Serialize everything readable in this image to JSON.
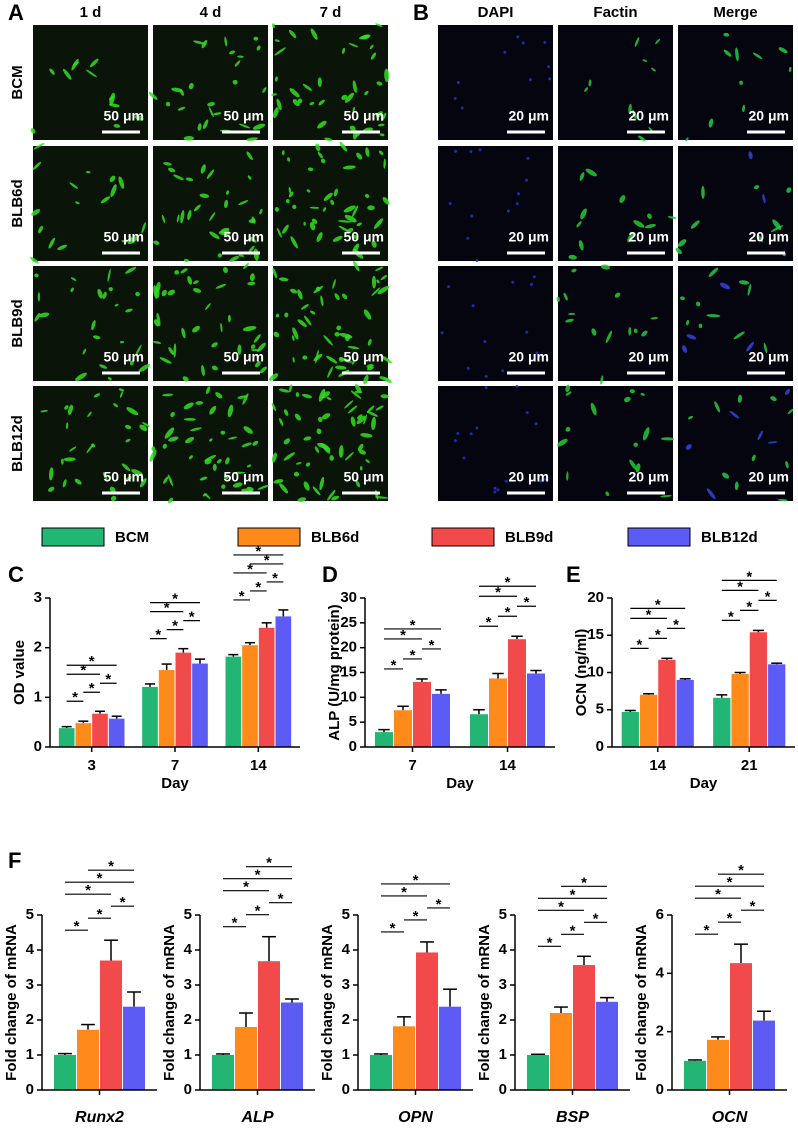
{
  "panels": {
    "A": {
      "label": "A",
      "columns": [
        "1 d",
        "4 d",
        "7 d"
      ],
      "rows": [
        "BCM",
        "BLB6d",
        "BLB9d",
        "BLB12d"
      ],
      "scale_bars": [
        [
          "50 μm",
          "50 μm",
          "50 μm"
        ],
        [
          "50 μm",
          "50 μm",
          "50 μm"
        ],
        [
          "50 μm",
          "50 μm",
          "50 μm"
        ],
        [
          "50 μm",
          "50 μm",
          "50 μm"
        ]
      ]
    },
    "B": {
      "label": "B",
      "columns": [
        "DAPI",
        "Factin",
        "Merge"
      ],
      "column_colors": [
        "#1010ff",
        "#10d010",
        "#000000"
      ],
      "scale_bars": [
        [
          "20 μm",
          "20 μm",
          "20 μm"
        ],
        [
          "20 μm",
          "20 μm",
          "20 μm"
        ],
        [
          "20 μm",
          "20 μm",
          "20 μm"
        ],
        [
          "20 μm",
          "20 μm",
          "20 μm"
        ]
      ]
    }
  },
  "legend": [
    {
      "name": "BCM",
      "color": "#22b573"
    },
    {
      "name": "BLB6d",
      "color": "#ff8a1c"
    },
    {
      "name": "BLB9d",
      "color": "#f24a4a"
    },
    {
      "name": "BLB12d",
      "color": "#5c5cf5"
    }
  ],
  "chart_data": [
    {
      "type": "bar",
      "panel": "C",
      "ylabel": "OD value",
      "xlabel": "Day",
      "categories": [
        "3",
        "7",
        "14"
      ],
      "ylim": [
        0,
        3
      ],
      "yticks": [
        0,
        1,
        2,
        3
      ],
      "series": [
        {
          "values": [
            0.38,
            1.21,
            1.82
          ],
          "errors": [
            0.03,
            0.06,
            0.04
          ]
        },
        {
          "values": [
            0.48,
            1.55,
            2.05
          ],
          "errors": [
            0.04,
            0.12,
            0.05
          ]
        },
        {
          "values": [
            0.67,
            1.9,
            2.4
          ],
          "errors": [
            0.05,
            0.08,
            0.1
          ]
        },
        {
          "values": [
            0.57,
            1.68,
            2.63
          ],
          "errors": [
            0.05,
            0.09,
            0.13
          ]
        }
      ],
      "comparisons": [
        [
          {
            "pair": [
              0,
              1
            ],
            "label": "*"
          },
          {
            "pair": [
              1,
              2
            ],
            "label": "*"
          },
          {
            "pair": [
              2,
              3
            ],
            "label": "*"
          },
          {
            "pair": [
              0,
              2
            ],
            "label": "*"
          },
          {
            "pair": [
              0,
              3
            ],
            "label": "*"
          }
        ],
        [
          {
            "pair": [
              0,
              1
            ],
            "label": "*"
          },
          {
            "pair": [
              1,
              2
            ],
            "label": "*"
          },
          {
            "pair": [
              2,
              3
            ],
            "label": "*"
          },
          {
            "pair": [
              0,
              2
            ],
            "label": "*"
          },
          {
            "pair": [
              0,
              3
            ],
            "label": "*"
          }
        ],
        [
          {
            "pair": [
              0,
              1
            ],
            "label": "*"
          },
          {
            "pair": [
              1,
              2
            ],
            "label": "*"
          },
          {
            "pair": [
              2,
              3
            ],
            "label": "*"
          },
          {
            "pair": [
              0,
              2
            ],
            "label": "*"
          },
          {
            "pair": [
              1,
              3
            ],
            "label": "*"
          },
          {
            "pair": [
              0,
              3
            ],
            "label": "*"
          }
        ]
      ]
    },
    {
      "type": "bar",
      "panel": "D",
      "ylabel": "ALP (U/mg protein)",
      "xlabel": "Day",
      "categories": [
        "7",
        "14"
      ],
      "ylim": [
        0,
        30
      ],
      "yticks": [
        0,
        5,
        10,
        15,
        20,
        25,
        30
      ],
      "series": [
        {
          "values": [
            3.0,
            6.6
          ],
          "errors": [
            0.5,
            0.9
          ]
        },
        {
          "values": [
            7.4,
            13.8
          ],
          "errors": [
            0.8,
            1.0
          ]
        },
        {
          "values": [
            13.1,
            21.7
          ],
          "errors": [
            0.6,
            0.6
          ]
        },
        {
          "values": [
            10.7,
            14.8
          ],
          "errors": [
            0.8,
            0.6
          ]
        }
      ],
      "comparisons": [
        [
          {
            "pair": [
              0,
              1
            ],
            "label": "*"
          },
          {
            "pair": [
              1,
              2
            ],
            "label": "*"
          },
          {
            "pair": [
              2,
              3
            ],
            "label": "*"
          },
          {
            "pair": [
              0,
              2
            ],
            "label": "*"
          },
          {
            "pair": [
              0,
              3
            ],
            "label": "*"
          }
        ],
        [
          {
            "pair": [
              0,
              1
            ],
            "label": "*"
          },
          {
            "pair": [
              1,
              2
            ],
            "label": "*"
          },
          {
            "pair": [
              2,
              3
            ],
            "label": "*"
          },
          {
            "pair": [
              0,
              2
            ],
            "label": "*"
          },
          {
            "pair": [
              0,
              3
            ],
            "label": "*"
          }
        ]
      ]
    },
    {
      "type": "bar",
      "panel": "E",
      "ylabel": "OCN (ng/ml)",
      "xlabel": "Day",
      "categories": [
        "14",
        "21"
      ],
      "ylim": [
        0,
        20
      ],
      "yticks": [
        0,
        5,
        10,
        15,
        20
      ],
      "series": [
        {
          "values": [
            4.7,
            6.6
          ],
          "errors": [
            0.2,
            0.4
          ]
        },
        {
          "values": [
            7.0,
            9.8
          ],
          "errors": [
            0.15,
            0.2
          ]
        },
        {
          "values": [
            11.7,
            15.4
          ],
          "errors": [
            0.2,
            0.25
          ]
        },
        {
          "values": [
            9.0,
            11.1
          ],
          "errors": [
            0.15,
            0.15
          ]
        }
      ],
      "comparisons": [
        [
          {
            "pair": [
              0,
              1
            ],
            "label": "*"
          },
          {
            "pair": [
              1,
              2
            ],
            "label": "*"
          },
          {
            "pair": [
              2,
              3
            ],
            "label": "*"
          },
          {
            "pair": [
              0,
              2
            ],
            "label": "*"
          },
          {
            "pair": [
              0,
              3
            ],
            "label": "*"
          }
        ],
        [
          {
            "pair": [
              0,
              1
            ],
            "label": "*"
          },
          {
            "pair": [
              1,
              2
            ],
            "label": "*"
          },
          {
            "pair": [
              2,
              3
            ],
            "label": "*"
          },
          {
            "pair": [
              0,
              2
            ],
            "label": "*"
          },
          {
            "pair": [
              0,
              3
            ],
            "label": "*"
          }
        ]
      ]
    },
    {
      "type": "bar",
      "panel": "F",
      "ylabel": "Fold change of mRNA",
      "categories": [
        "Runx2"
      ],
      "ylim": [
        0,
        5
      ],
      "yticks": [
        0,
        1,
        2,
        3,
        4,
        5
      ],
      "series": [
        {
          "values": [
            1.0
          ],
          "errors": [
            0.04
          ]
        },
        {
          "values": [
            1.72
          ],
          "errors": [
            0.15
          ]
        },
        {
          "values": [
            3.7
          ],
          "errors": [
            0.58
          ]
        },
        {
          "values": [
            2.38
          ],
          "errors": [
            0.42
          ]
        }
      ],
      "comparisons": [
        [
          {
            "pair": [
              0,
              1
            ],
            "label": "*"
          },
          {
            "pair": [
              1,
              2
            ],
            "label": "*"
          },
          {
            "pair": [
              2,
              3
            ],
            "label": "*"
          },
          {
            "pair": [
              0,
              2
            ],
            "label": "*"
          },
          {
            "pair": [
              0,
              3
            ],
            "label": "*"
          },
          {
            "pair": [
              1,
              3
            ],
            "label": "*"
          }
        ]
      ]
    },
    {
      "type": "bar",
      "ylabel": "Fold change of mRNA",
      "categories": [
        "ALP"
      ],
      "ylim": [
        0,
        5
      ],
      "yticks": [
        0,
        1,
        2,
        3,
        4,
        5
      ],
      "series": [
        {
          "values": [
            1.0
          ],
          "errors": [
            0.03
          ]
        },
        {
          "values": [
            1.8
          ],
          "errors": [
            0.4
          ]
        },
        {
          "values": [
            3.68
          ],
          "errors": [
            0.7
          ]
        },
        {
          "values": [
            2.5
          ],
          "errors": [
            0.1
          ]
        }
      ],
      "comparisons": [
        [
          {
            "pair": [
              0,
              1
            ],
            "label": "*"
          },
          {
            "pair": [
              1,
              2
            ],
            "label": "*"
          },
          {
            "pair": [
              2,
              3
            ],
            "label": "*"
          },
          {
            "pair": [
              0,
              2
            ],
            "label": "*"
          },
          {
            "pair": [
              0,
              3
            ],
            "label": "*"
          },
          {
            "pair": [
              1,
              3
            ],
            "label": "*"
          }
        ]
      ]
    },
    {
      "type": "bar",
      "ylabel": "Fold change of mRNA",
      "categories": [
        "OPN"
      ],
      "ylim": [
        0,
        5
      ],
      "yticks": [
        0,
        1,
        2,
        3,
        4,
        5
      ],
      "series": [
        {
          "values": [
            1.0
          ],
          "errors": [
            0.03
          ]
        },
        {
          "values": [
            1.82
          ],
          "errors": [
            0.27
          ]
        },
        {
          "values": [
            3.93
          ],
          "errors": [
            0.3
          ]
        },
        {
          "values": [
            2.38
          ],
          "errors": [
            0.5
          ]
        }
      ],
      "comparisons": [
        [
          {
            "pair": [
              0,
              1
            ],
            "label": "*"
          },
          {
            "pair": [
              1,
              2
            ],
            "label": "*"
          },
          {
            "pair": [
              2,
              3
            ],
            "label": "*"
          },
          {
            "pair": [
              0,
              2
            ],
            "label": "*"
          },
          {
            "pair": [
              0,
              3
            ],
            "label": "*"
          }
        ]
      ]
    },
    {
      "type": "bar",
      "ylabel": "Fold change of mRNA",
      "categories": [
        "BSP"
      ],
      "ylim": [
        0,
        5
      ],
      "yticks": [
        0,
        1,
        2,
        3,
        4,
        5
      ],
      "series": [
        {
          "values": [
            1.0
          ],
          "errors": [
            0.02
          ]
        },
        {
          "values": [
            2.2
          ],
          "errors": [
            0.17
          ]
        },
        {
          "values": [
            3.57
          ],
          "errors": [
            0.25
          ]
        },
        {
          "values": [
            2.52
          ],
          "errors": [
            0.12
          ]
        }
      ],
      "comparisons": [
        [
          {
            "pair": [
              0,
              1
            ],
            "label": "*"
          },
          {
            "pair": [
              1,
              2
            ],
            "label": "*"
          },
          {
            "pair": [
              2,
              3
            ],
            "label": "*"
          },
          {
            "pair": [
              0,
              2
            ],
            "label": "*"
          },
          {
            "pair": [
              0,
              3
            ],
            "label": "*"
          },
          {
            "pair": [
              1,
              3
            ],
            "label": "*"
          }
        ]
      ]
    },
    {
      "type": "bar",
      "ylabel": "Fold change of mRNA",
      "categories": [
        "OCN"
      ],
      "ylim": [
        0,
        6
      ],
      "yticks": [
        0,
        2,
        4,
        6
      ],
      "series": [
        {
          "values": [
            1.0
          ],
          "errors": [
            0.03
          ]
        },
        {
          "values": [
            1.72
          ],
          "errors": [
            0.1
          ]
        },
        {
          "values": [
            4.35
          ],
          "errors": [
            0.65
          ]
        },
        {
          "values": [
            2.38
          ],
          "errors": [
            0.32
          ]
        }
      ],
      "comparisons": [
        [
          {
            "pair": [
              0,
              1
            ],
            "label": "*"
          },
          {
            "pair": [
              1,
              2
            ],
            "label": "*"
          },
          {
            "pair": [
              2,
              3
            ],
            "label": "*"
          },
          {
            "pair": [
              0,
              2
            ],
            "label": "*"
          },
          {
            "pair": [
              0,
              3
            ],
            "label": "*"
          },
          {
            "pair": [
              1,
              3
            ],
            "label": "*"
          }
        ]
      ]
    }
  ]
}
